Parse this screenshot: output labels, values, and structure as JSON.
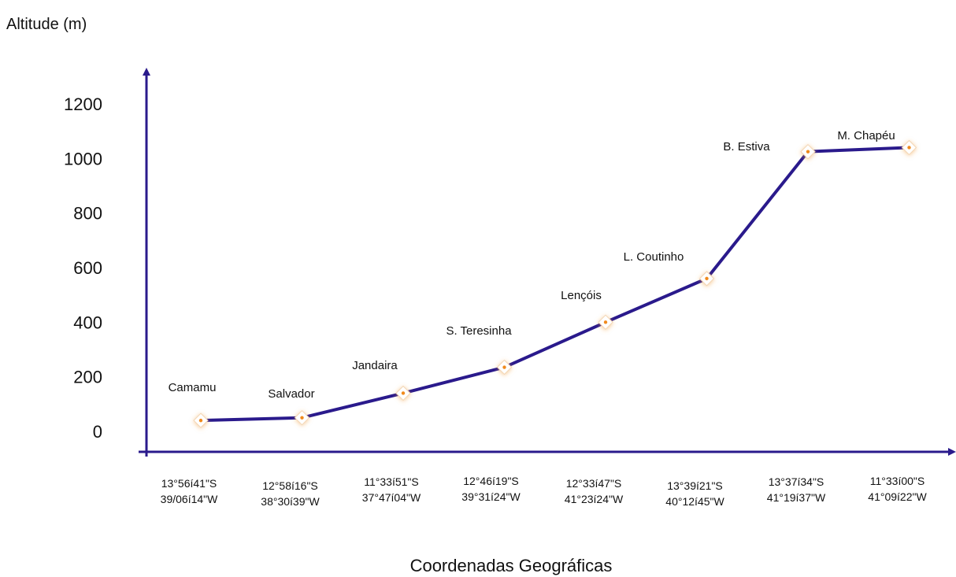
{
  "chart_data": {
    "type": "line",
    "title": "",
    "ylabel": "Altitude (m)",
    "xlabel": "Coordenadas Geográficas",
    "ylim": [
      -80,
      1300
    ],
    "yticks": [
      0,
      200,
      400,
      600,
      800,
      1000,
      1200
    ],
    "categories": [
      "13°56í41\"S 39/06í14\"W",
      "12°58í16\"S 38°30í39\"W",
      "11°33í51\"S 37°47í04\"W",
      "12°46í19\"S 39°31í24\"W",
      "12°33í47\"S 41°23í24\"W",
      "13°39í21\"S 40°12í45\"W",
      "13°37í34\"S 41°19í37\"W",
      "11°33í00\"S 41°09í22\"W"
    ],
    "tick_labels": [
      [
        "13°56í41\"S",
        "39/06í14\"W"
      ],
      [
        "12°58í16\"S",
        "38°30í39\"W"
      ],
      [
        "11°33í51\"S",
        "37°47í04\"W"
      ],
      [
        "12°46í19\"S",
        "39°31í24\"W"
      ],
      [
        "12°33í47\"S",
        "41°23í24\"W"
      ],
      [
        "13°39í21\"S",
        "40°12í45\"W"
      ],
      [
        "13°37í34\"S",
        "41°19í37\"W"
      ],
      [
        "11°33í00\"S",
        "41°09í22\"W"
      ]
    ],
    "point_labels": [
      "Camamu",
      "Salvador",
      "Jandaira",
      "S. Teresinha",
      "Lençóis",
      "L. Coutinho",
      "B. Estiva",
      "M. Chapéu"
    ],
    "values": [
      40,
      50,
      140,
      235,
      400,
      560,
      1025,
      1040
    ],
    "grid": false,
    "colors": {
      "line": "#2a1a8c",
      "axis": "#2a1a8c",
      "marker_fill": "#ffffff",
      "marker_dot": "#f08a1c"
    }
  }
}
